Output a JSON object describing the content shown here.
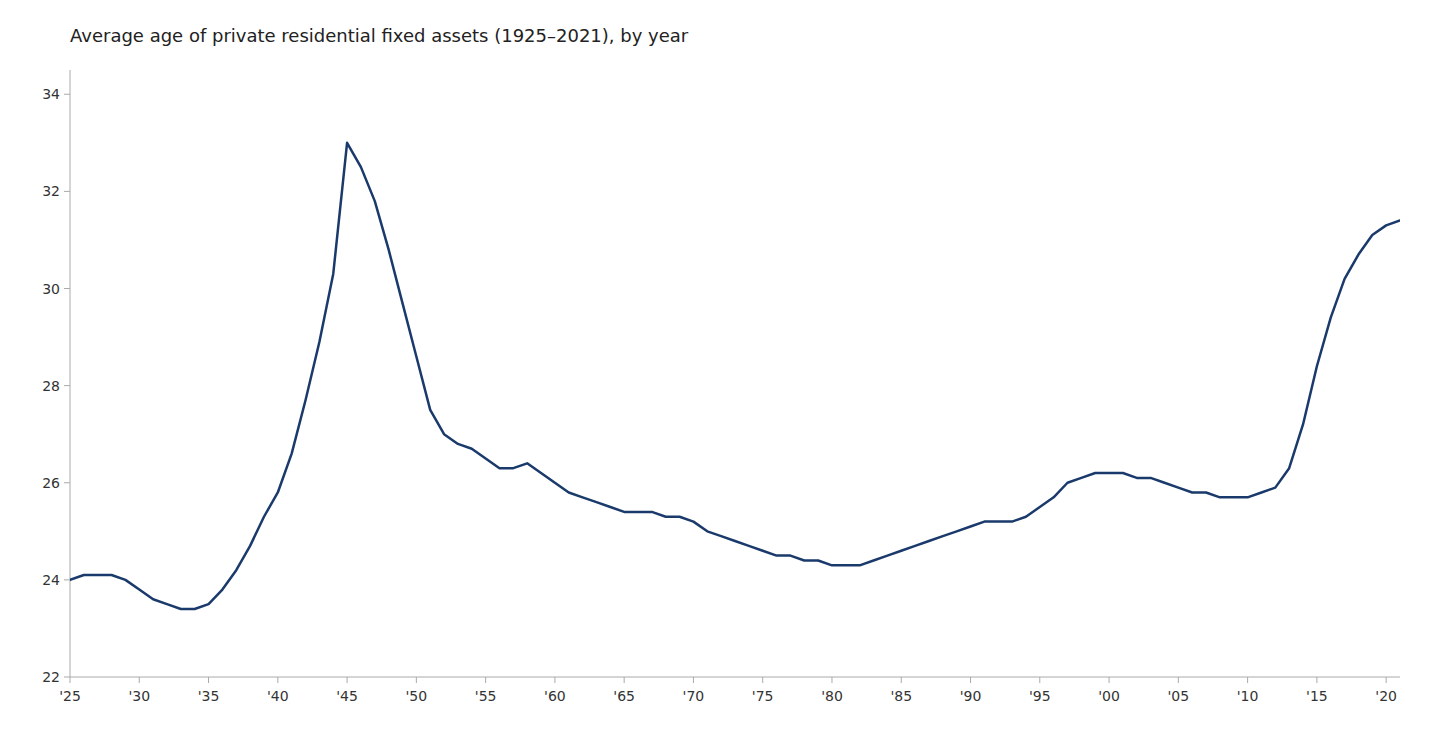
{
  "chart_data": {
    "type": "line",
    "title": "Average age of private residential fixed assets (1925–2021), by year",
    "color": "#1a3a6b",
    "grid": false,
    "xlim": [
      1925,
      2021
    ],
    "ylim": [
      22,
      34.5
    ],
    "yticks": [
      22,
      24,
      26,
      28,
      30,
      32,
      34
    ],
    "xticks": [
      {
        "value": 1925,
        "label": "'25"
      },
      {
        "value": 1930,
        "label": "'30"
      },
      {
        "value": 1935,
        "label": "'35"
      },
      {
        "value": 1940,
        "label": "'40"
      },
      {
        "value": 1945,
        "label": "'45"
      },
      {
        "value": 1950,
        "label": "'50"
      },
      {
        "value": 1955,
        "label": "'55"
      },
      {
        "value": 1960,
        "label": "'60"
      },
      {
        "value": 1965,
        "label": "'65"
      },
      {
        "value": 1970,
        "label": "'70"
      },
      {
        "value": 1975,
        "label": "'75"
      },
      {
        "value": 1980,
        "label": "'80"
      },
      {
        "value": 1985,
        "label": "'85"
      },
      {
        "value": 1990,
        "label": "'90"
      },
      {
        "value": 1995,
        "label": "'95"
      },
      {
        "value": 2000,
        "label": "'00"
      },
      {
        "value": 2005,
        "label": "'05"
      },
      {
        "value": 2010,
        "label": "'10"
      },
      {
        "value": 2015,
        "label": "'15"
      },
      {
        "value": 2020,
        "label": "'20"
      }
    ],
    "x": [
      1925,
      1926,
      1927,
      1928,
      1929,
      1930,
      1931,
      1932,
      1933,
      1934,
      1935,
      1936,
      1937,
      1938,
      1939,
      1940,
      1941,
      1942,
      1943,
      1944,
      1945,
      1946,
      1947,
      1948,
      1949,
      1950,
      1951,
      1952,
      1953,
      1954,
      1955,
      1956,
      1957,
      1958,
      1959,
      1960,
      1961,
      1962,
      1963,
      1964,
      1965,
      1966,
      1967,
      1968,
      1969,
      1970,
      1971,
      1972,
      1973,
      1974,
      1975,
      1976,
      1977,
      1978,
      1979,
      1980,
      1981,
      1982,
      1983,
      1984,
      1985,
      1986,
      1987,
      1988,
      1989,
      1990,
      1991,
      1992,
      1993,
      1994,
      1995,
      1996,
      1997,
      1998,
      1999,
      2000,
      2001,
      2002,
      2003,
      2004,
      2005,
      2006,
      2007,
      2008,
      2009,
      2010,
      2011,
      2012,
      2013,
      2014,
      2015,
      2016,
      2017,
      2018,
      2019,
      2020,
      2021
    ],
    "values": [
      24.0,
      24.1,
      24.1,
      24.1,
      24.0,
      23.8,
      23.6,
      23.5,
      23.4,
      23.4,
      23.5,
      23.8,
      24.2,
      24.7,
      25.3,
      25.8,
      26.6,
      27.7,
      28.9,
      30.3,
      33.0,
      32.5,
      31.8,
      30.8,
      29.7,
      28.6,
      27.5,
      27.0,
      26.8,
      26.7,
      26.5,
      26.3,
      26.3,
      26.4,
      26.2,
      26.0,
      25.8,
      25.7,
      25.6,
      25.5,
      25.4,
      25.4,
      25.4,
      25.3,
      25.3,
      25.2,
      25.0,
      24.9,
      24.8,
      24.7,
      24.6,
      24.5,
      24.5,
      24.4,
      24.4,
      24.3,
      24.3,
      24.3,
      24.4,
      24.5,
      24.6,
      24.7,
      24.8,
      24.9,
      25.0,
      25.1,
      25.2,
      25.2,
      25.2,
      25.3,
      25.5,
      25.7,
      26.0,
      26.1,
      26.2,
      26.2,
      26.2,
      26.1,
      26.1,
      26.0,
      25.9,
      25.8,
      25.8,
      25.7,
      25.7,
      25.7,
      25.8,
      25.9,
      26.3,
      27.2,
      28.4,
      29.4,
      30.2,
      30.7,
      31.1,
      31.3,
      31.4
    ]
  }
}
